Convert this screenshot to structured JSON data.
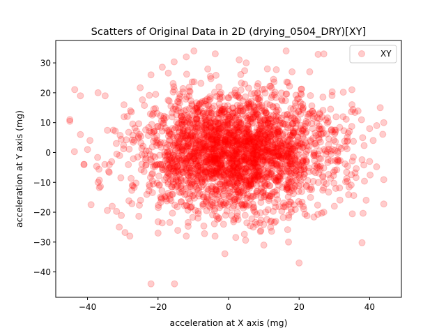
{
  "chart_data": {
    "type": "scatter",
    "title": "Scatters of Original Data in 2D (drying_0504_DRY)[XY]",
    "xlabel": "acceleration at X axis (mg)",
    "ylabel": "acceleration at Y axis (mg)",
    "xlim": [
      -49,
      49
    ],
    "ylim": [
      -48.5,
      37.5
    ],
    "xticks": [
      -40,
      -20,
      0,
      20,
      40
    ],
    "yticks": [
      -40,
      -30,
      -20,
      -10,
      0,
      10,
      20,
      30
    ],
    "xtick_labels": [
      "−40",
      "−20",
      "0",
      "20",
      "40"
    ],
    "ytick_labels": [
      "−40",
      "−30",
      "−20",
      "−10",
      "0",
      "10",
      "20",
      "30"
    ],
    "grid": false,
    "legend_position": "top-right",
    "series": [
      {
        "name": "XY",
        "color": "#ff0000",
        "marker_alpha": 0.2,
        "distribution": {
          "n": 2600,
          "x_mean": 2,
          "x_sd": 14,
          "y_mean": 0,
          "y_sd": 10,
          "x_range": [
            -45,
            44
          ],
          "y_range": [
            -44,
            34
          ]
        },
        "x": [
          -45,
          -42,
          -41,
          -37,
          -35,
          -33,
          -31,
          -28,
          -22,
          -22,
          -20,
          -12,
          -12,
          3,
          5,
          7,
          10,
          11,
          17,
          18,
          20,
          23,
          27,
          35,
          39,
          43,
          44,
          40,
          -37,
          -42,
          -41,
          -40,
          42,
          40,
          41,
          30,
          27
        ],
        "y": [
          11,
          19,
          -4,
          -10,
          19,
          -18,
          -25,
          -28,
          -44,
          26,
          -27,
          -28,
          32,
          31,
          30,
          -25,
          -31,
          28,
          -30,
          27,
          -37,
          27,
          33,
          16,
          -16,
          15,
          10,
          -3,
          20,
          6,
          -4,
          1,
          9,
          8,
          4,
          -18,
          -20
        ]
      }
    ]
  }
}
